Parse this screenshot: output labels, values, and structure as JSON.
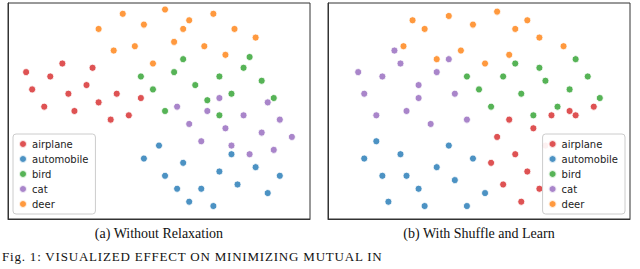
{
  "chart_data": [
    {
      "type": "scatter",
      "title": "(a) Without Relaxation",
      "xlim": [
        0,
        100
      ],
      "ylim": [
        0,
        100
      ],
      "tick_labels": false,
      "grid": false,
      "legend": "lower left",
      "marker": "circle",
      "series": [
        {
          "name": "airplane",
          "color": "#d62728",
          "x": [
            8,
            14,
            20,
            26,
            30,
            36,
            12,
            22,
            40,
            18,
            28,
            34,
            44,
            6
          ],
          "values": [
            60,
            66,
            58,
            62,
            54,
            58,
            52,
            50,
            48,
            72,
            70,
            46,
            56,
            68
          ]
        },
        {
          "name": "automobile",
          "color": "#1f77b4",
          "x": [
            45,
            52,
            58,
            64,
            70,
            76,
            82,
            60,
            68,
            86,
            50,
            74,
            90,
            56
          ],
          "values": [
            28,
            20,
            26,
            14,
            22,
            16,
            24,
            8,
            6,
            12,
            34,
            30,
            20,
            14
          ]
        },
        {
          "name": "bird",
          "color": "#2ca02c",
          "x": [
            55,
            62,
            70,
            78,
            84,
            48,
            66,
            74,
            58,
            88,
            52,
            80,
            44,
            70
          ],
          "values": [
            68,
            62,
            66,
            70,
            64,
            60,
            55,
            58,
            74,
            56,
            50,
            75,
            66,
            48
          ]
        },
        {
          "name": "cat",
          "color": "#9467bd",
          "x": [
            60,
            66,
            72,
            78,
            84,
            90,
            64,
            74,
            86,
            94,
            56,
            80,
            70,
            88
          ],
          "values": [
            44,
            50,
            42,
            48,
            40,
            46,
            36,
            34,
            54,
            38,
            52,
            30,
            56,
            32
          ]
        },
        {
          "name": "deer",
          "color": "#ff7f0e",
          "x": [
            30,
            38,
            45,
            52,
            60,
            68,
            75,
            82,
            55,
            42,
            65,
            48,
            35,
            72,
            58
          ],
          "values": [
            88,
            95,
            90,
            97,
            92,
            95,
            88,
            84,
            82,
            80,
            80,
            72,
            78,
            76,
            88
          ]
        }
      ]
    },
    {
      "type": "scatter",
      "title": "(b) With Shuffle and Learn",
      "xlim": [
        0,
        100
      ],
      "ylim": [
        0,
        100
      ],
      "tick_labels": false,
      "grid": false,
      "legend": "lower right",
      "marker": "circle",
      "series": [
        {
          "name": "airplane",
          "color": "#d62728",
          "x": [
            56,
            62,
            68,
            74,
            66,
            58,
            72,
            80,
            88,
            64,
            54,
            70,
            82,
            60
          ],
          "values": [
            38,
            30,
            42,
            48,
            22,
            16,
            34,
            50,
            52,
            8,
            26,
            14,
            48,
            46
          ]
        },
        {
          "name": "automobile",
          "color": "#1f77b4",
          "x": [
            12,
            18,
            24,
            30,
            36,
            42,
            48,
            20,
            32,
            52,
            16,
            40,
            26,
            46
          ],
          "values": [
            28,
            20,
            30,
            14,
            24,
            18,
            28,
            8,
            6,
            12,
            36,
            34,
            20,
            6
          ]
        },
        {
          "name": "bird",
          "color": "#2ca02c",
          "x": [
            50,
            58,
            64,
            72,
            80,
            86,
            76,
            68,
            54,
            90,
            62,
            82,
            46,
            70
          ],
          "values": [
            60,
            66,
            58,
            64,
            60,
            66,
            52,
            48,
            52,
            56,
            72,
            74,
            66,
            70
          ]
        },
        {
          "name": "cat",
          "color": "#9467bd",
          "x": [
            12,
            18,
            24,
            30,
            36,
            42,
            16,
            26,
            34,
            46,
            22,
            40,
            10,
            30
          ],
          "values": [
            58,
            66,
            72,
            62,
            68,
            58,
            48,
            50,
            44,
            46,
            78,
            74,
            68,
            56
          ]
        },
        {
          "name": "deer",
          "color": "#ff7f0e",
          "x": [
            25,
            32,
            40,
            48,
            56,
            62,
            70,
            78,
            44,
            52,
            36,
            60,
            66,
            28
          ],
          "values": [
            80,
            88,
            94,
            90,
            96,
            88,
            84,
            80,
            78,
            72,
            74,
            76,
            92,
            92
          ]
        }
      ]
    }
  ],
  "figure_caption": "Fig. 1: VISUALIZED EFFECT ON MINIMIZING MUTUAL IN"
}
